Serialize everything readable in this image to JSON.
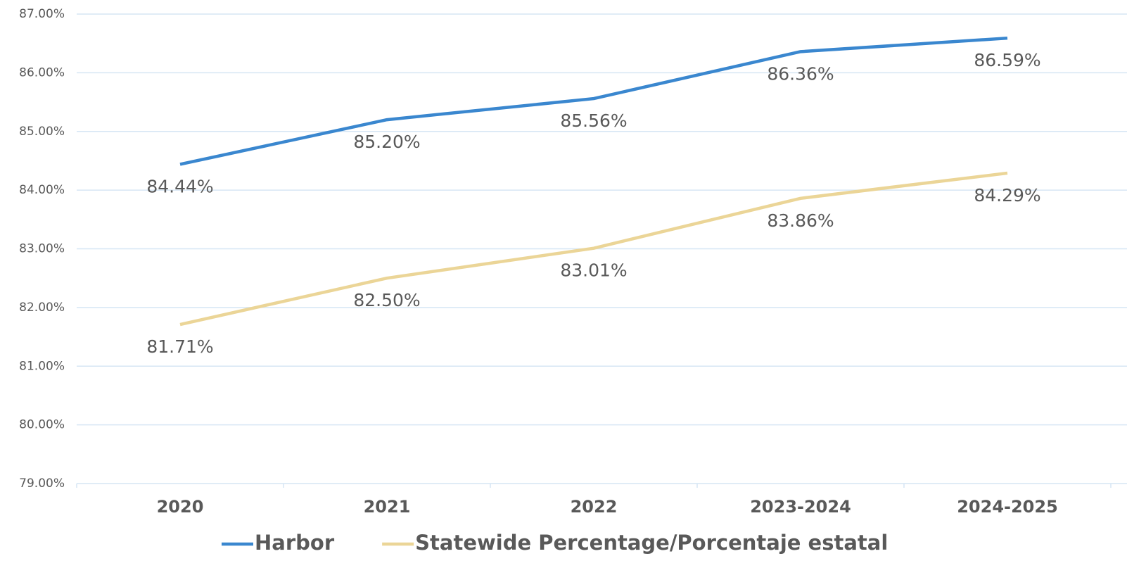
{
  "chart_data": {
    "type": "line",
    "categories": [
      "2020",
      "2021",
      "2022",
      "2023-2024",
      "2024-2025"
    ],
    "series": [
      {
        "name": "Harbor",
        "color": "#3a87cf",
        "values": [
          84.44,
          85.2,
          85.56,
          86.36,
          86.59
        ],
        "value_labels": [
          "84.44%",
          "85.20%",
          "85.56%",
          "86.36%",
          "86.59%"
        ]
      },
      {
        "name": "Statewide Percentage/Porcentaje estatal",
        "color": "#ebd597",
        "values": [
          81.71,
          82.5,
          83.01,
          83.86,
          84.29
        ],
        "value_labels": [
          "81.71%",
          "82.50%",
          "83.01%",
          "83.86%",
          "84.29%"
        ]
      }
    ],
    "ylim": [
      79,
      87
    ],
    "yticks": [
      {
        "value": 79,
        "label": "79.00%"
      },
      {
        "value": 80,
        "label": "80.00%"
      },
      {
        "value": 81,
        "label": "81.00%"
      },
      {
        "value": 82,
        "label": "82.00%"
      },
      {
        "value": 83,
        "label": "83.00%"
      },
      {
        "value": 84,
        "label": "84.00%"
      },
      {
        "value": 85,
        "label": "85.00%"
      },
      {
        "value": 86,
        "label": "86.00%"
      },
      {
        "value": 87,
        "label": "87.00%"
      }
    ],
    "grid": true,
    "legend": "bottom"
  }
}
